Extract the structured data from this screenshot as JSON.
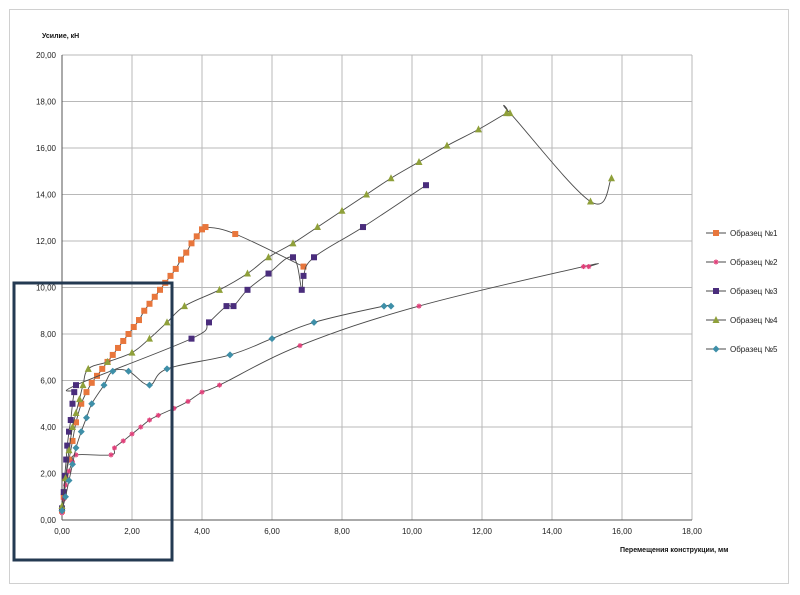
{
  "chart_data": {
    "type": "scatter",
    "title": "",
    "ylabel": "Усилие, кН",
    "xlabel": "Перемещения конструкции, мм",
    "xlim": [
      0,
      18
    ],
    "ylim": [
      0,
      20
    ],
    "x_ticks": [
      "0,00",
      "2,00",
      "4,00",
      "6,00",
      "8,00",
      "10,00",
      "12,00",
      "14,00",
      "16,00",
      "18,00"
    ],
    "y_ticks": [
      "0,00",
      "2,00",
      "4,00",
      "6,00",
      "8,00",
      "10,00",
      "12,00",
      "14,00",
      "16,00",
      "18,00",
      "20,00"
    ],
    "grid": true,
    "legend_position": "right",
    "series": [
      {
        "name": "Образец №1",
        "color": "#e8763c",
        "marker": "square",
        "points": [
          [
            0,
            0.4
          ],
          [
            0.05,
            1.0
          ],
          [
            0.1,
            1.8
          ],
          [
            0.2,
            2.6
          ],
          [
            0.3,
            3.4
          ],
          [
            0.4,
            4.2
          ],
          [
            0.55,
            5.0
          ],
          [
            0.7,
            5.5
          ],
          [
            0.85,
            5.9
          ],
          [
            1.0,
            6.2
          ],
          [
            1.15,
            6.5
          ],
          [
            1.3,
            6.8
          ],
          [
            1.45,
            7.1
          ],
          [
            1.6,
            7.4
          ],
          [
            1.75,
            7.7
          ],
          [
            1.9,
            8.0
          ],
          [
            2.05,
            8.3
          ],
          [
            2.2,
            8.6
          ],
          [
            2.35,
            9.0
          ],
          [
            2.5,
            9.3
          ],
          [
            2.65,
            9.6
          ],
          [
            2.8,
            9.9
          ],
          [
            2.95,
            10.2
          ],
          [
            3.1,
            10.5
          ],
          [
            3.25,
            10.8
          ],
          [
            3.4,
            11.2
          ],
          [
            3.55,
            11.5
          ],
          [
            3.7,
            11.9
          ],
          [
            3.85,
            12.2
          ],
          [
            4.0,
            12.5
          ],
          [
            4.1,
            12.6
          ],
          [
            4.95,
            12.3
          ],
          [
            6.9,
            10.9
          ]
        ]
      },
      {
        "name": "Образец №2",
        "color": "#e0407a",
        "marker": "star",
        "points": [
          [
            0,
            0.3
          ],
          [
            0.05,
            0.9
          ],
          [
            0.1,
            1.5
          ],
          [
            0.2,
            2.1
          ],
          [
            0.3,
            2.5
          ],
          [
            0.4,
            2.8
          ],
          [
            1.4,
            2.8
          ],
          [
            1.5,
            3.1
          ],
          [
            1.75,
            3.4
          ],
          [
            2.0,
            3.7
          ],
          [
            2.25,
            4.0
          ],
          [
            2.5,
            4.3
          ],
          [
            2.75,
            4.5
          ],
          [
            3.2,
            4.8
          ],
          [
            3.6,
            5.1
          ],
          [
            4.0,
            5.5
          ],
          [
            4.5,
            5.8
          ],
          [
            6.8,
            7.5
          ],
          [
            10.2,
            9.2
          ],
          [
            14.9,
            10.9
          ],
          [
            15.05,
            10.9
          ]
        ]
      },
      {
        "name": "Образец №3",
        "color": "#4a2d7c",
        "marker": "square",
        "points": [
          [
            0,
            0.5
          ],
          [
            0.05,
            1.2
          ],
          [
            0.08,
            1.9
          ],
          [
            0.12,
            2.6
          ],
          [
            0.15,
            3.2
          ],
          [
            0.2,
            3.8
          ],
          [
            0.25,
            4.3
          ],
          [
            0.3,
            5.0
          ],
          [
            0.35,
            5.5
          ],
          [
            0.4,
            5.8
          ],
          [
            3.7,
            7.8
          ],
          [
            4.2,
            8.5
          ],
          [
            4.7,
            9.2
          ],
          [
            4.9,
            9.2
          ],
          [
            5.3,
            9.9
          ],
          [
            5.9,
            10.6
          ],
          [
            6.6,
            11.3
          ],
          [
            6.85,
            9.9
          ],
          [
            6.9,
            10.5
          ],
          [
            7.2,
            11.3
          ],
          [
            8.6,
            12.6
          ],
          [
            10.4,
            14.4
          ]
        ]
      },
      {
        "name": "Образец №4",
        "color": "#8fa03a",
        "marker": "triangle",
        "points": [
          [
            0,
            0.6
          ],
          [
            0.1,
            1.8
          ],
          [
            0.2,
            3.0
          ],
          [
            0.3,
            4.0
          ],
          [
            0.4,
            4.6
          ],
          [
            0.5,
            5.2
          ],
          [
            0.6,
            5.8
          ],
          [
            0.75,
            6.5
          ],
          [
            1.3,
            6.8
          ],
          [
            2.0,
            7.2
          ],
          [
            2.5,
            7.8
          ],
          [
            3.0,
            8.5
          ],
          [
            3.5,
            9.2
          ],
          [
            4.5,
            9.9
          ],
          [
            5.3,
            10.6
          ],
          [
            5.9,
            11.3
          ],
          [
            6.6,
            11.9
          ],
          [
            7.3,
            12.6
          ],
          [
            8.0,
            13.3
          ],
          [
            8.7,
            14.0
          ],
          [
            9.4,
            14.7
          ],
          [
            10.2,
            15.4
          ],
          [
            11.0,
            16.1
          ],
          [
            11.9,
            16.8
          ],
          [
            12.7,
            17.5
          ],
          [
            12.8,
            17.5
          ],
          [
            15.1,
            13.7
          ],
          [
            15.7,
            14.7
          ]
        ]
      },
      {
        "name": "Образец №5",
        "color": "#3e8fa8",
        "marker": "diamond",
        "points": [
          [
            0,
            0.4
          ],
          [
            0.1,
            1.0
          ],
          [
            0.2,
            1.7
          ],
          [
            0.3,
            2.4
          ],
          [
            0.4,
            3.1
          ],
          [
            0.55,
            3.8
          ],
          [
            0.7,
            4.4
          ],
          [
            0.85,
            5.0
          ],
          [
            1.2,
            5.8
          ],
          [
            1.45,
            6.4
          ],
          [
            1.9,
            6.4
          ],
          [
            2.5,
            5.8
          ],
          [
            3.0,
            6.5
          ],
          [
            4.8,
            7.1
          ],
          [
            6.0,
            7.8
          ],
          [
            7.2,
            8.5
          ],
          [
            9.2,
            9.2
          ],
          [
            9.4,
            9.2
          ]
        ]
      }
    ]
  },
  "highlight_box": {
    "color": "#243a52"
  }
}
